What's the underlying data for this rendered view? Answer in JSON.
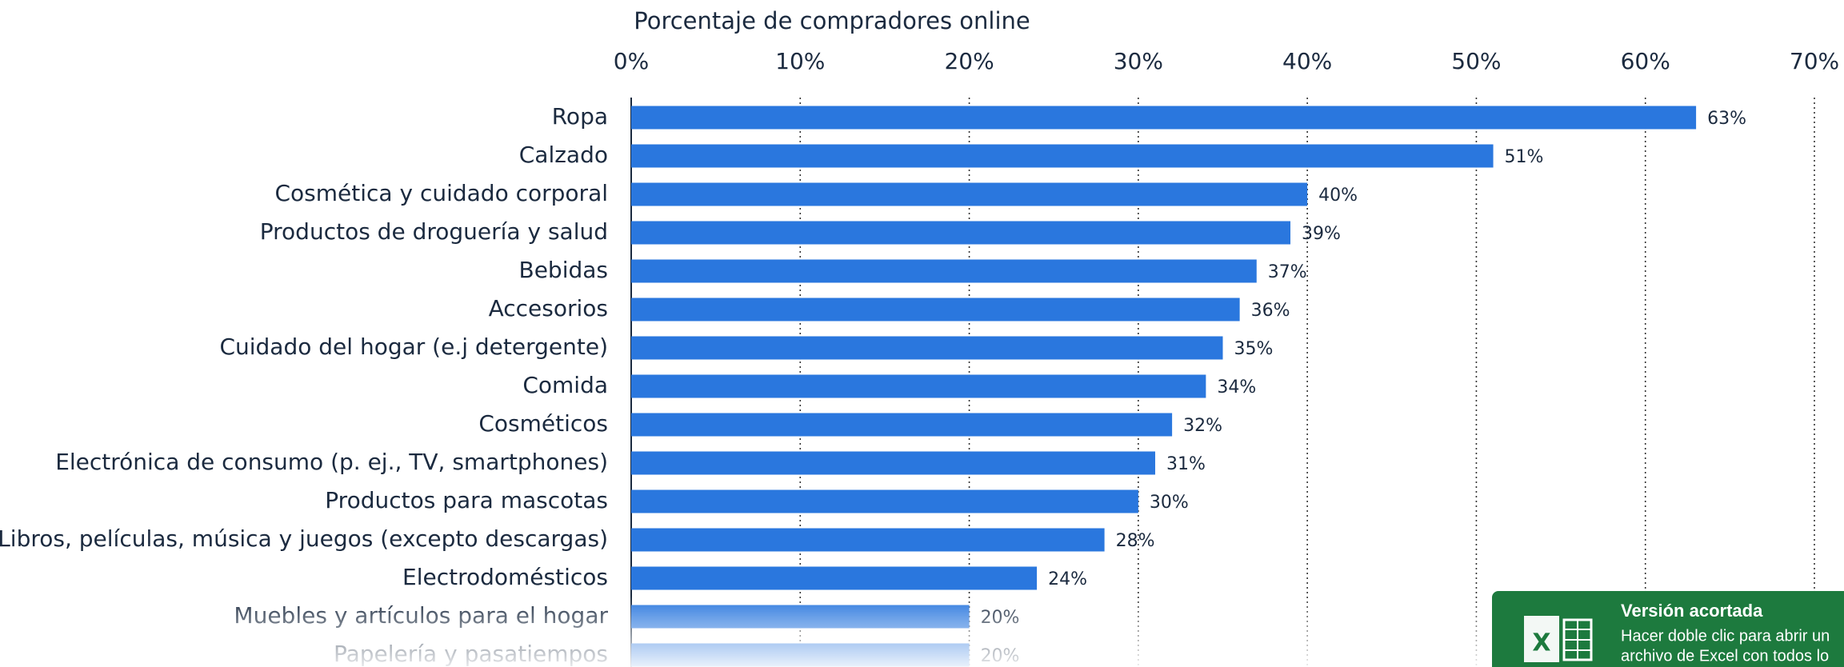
{
  "chart_data": {
    "type": "barh",
    "title": "Porcentaje de compradores online",
    "categories": [
      "Ropa",
      "Calzado",
      "Cosmética y cuidado corporal",
      "Productos de droguería y salud",
      "Bebidas",
      "Accesorios",
      "Cuidado del hogar (e.j detergente)",
      "Comida",
      "Cosméticos",
      "Electrónica de consumo (p. ej., TV, smartphones)",
      "Productos para mascotas",
      "Libros, películas, música y juegos (excepto descargas)",
      "Electrodomésticos",
      "Muebles y artículos para el hogar",
      "Papelería y pasatiempos"
    ],
    "values": [
      63,
      51,
      40,
      39,
      37,
      36,
      35,
      34,
      32,
      31,
      30,
      28,
      24,
      20,
      20
    ],
    "value_labels": [
      "63%",
      "51%",
      "40%",
      "39%",
      "37%",
      "36%",
      "35%",
      "34%",
      "32%",
      "31%",
      "30%",
      "28%",
      "24%",
      "20%",
      "20%"
    ],
    "color": "#2a77de",
    "xlim": [
      0,
      70
    ],
    "xticks": [
      {
        "value": 0,
        "label": "0%"
      },
      {
        "value": 10,
        "label": "10%"
      },
      {
        "value": 20,
        "label": "20%"
      },
      {
        "value": 30,
        "label": "30%"
      },
      {
        "value": 40,
        "label": "40%"
      },
      {
        "value": 50,
        "label": "50%"
      },
      {
        "value": 60,
        "label": "60%"
      },
      {
        "value": 70,
        "label": "70%"
      }
    ],
    "grid": true
  },
  "excel_notice": {
    "title": "Versión acortada",
    "lines": [
      "Hacer doble clic para abrir un",
      "archivo de Excel con todos lo"
    ]
  }
}
